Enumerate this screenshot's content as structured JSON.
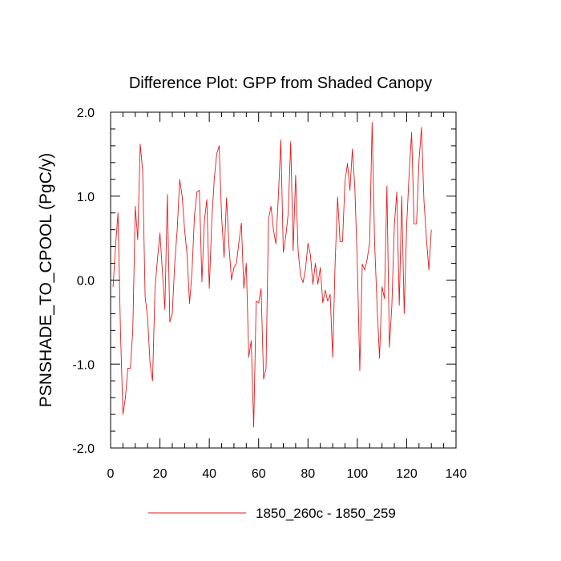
{
  "chart_data": {
    "type": "line",
    "title": "Difference Plot: GPP from Shaded Canopy",
    "xlabel": "",
    "ylabel": "PSNSHADE_TO_CPOOL  (PgC/y)",
    "xlim": [
      0,
      140
    ],
    "ylim": [
      -2.0,
      2.0
    ],
    "x_ticks": [
      0,
      20,
      40,
      60,
      80,
      100,
      120,
      140
    ],
    "x_tick_labels": [
      "0",
      "20",
      "40",
      "60",
      "80",
      "100",
      "120",
      "140"
    ],
    "y_ticks": [
      -2.0,
      -1.0,
      0.0,
      1.0,
      2.0
    ],
    "y_tick_labels": [
      "-2.0",
      "-1.0",
      "0.0",
      "1.0",
      "2.0"
    ],
    "grid": false,
    "legend_position": "bottom-center",
    "series": [
      {
        "name": "1850_260c - 1850_259",
        "color": "#e41a1c",
        "x": [
          1,
          2,
          3,
          4,
          5,
          6,
          7,
          8,
          9,
          10,
          11,
          12,
          13,
          14,
          15,
          16,
          17,
          18,
          19,
          20,
          21,
          22,
          23,
          24,
          25,
          26,
          27,
          28,
          29,
          30,
          31,
          32,
          33,
          34,
          35,
          36,
          37,
          38,
          39,
          40,
          41,
          42,
          43,
          44,
          45,
          46,
          47,
          48,
          49,
          50,
          51,
          52,
          53,
          54,
          55,
          56,
          57,
          58,
          59,
          60,
          61,
          62,
          63,
          64,
          65,
          66,
          67,
          68,
          69,
          70,
          71,
          72,
          73,
          74,
          75,
          76,
          77,
          78,
          79,
          80,
          81,
          82,
          83,
          84,
          85,
          86,
          87,
          88,
          89,
          90,
          91,
          92,
          93,
          94,
          95,
          96,
          97,
          98,
          99,
          100,
          101,
          102,
          103,
          104,
          105,
          106,
          107,
          108,
          109,
          110,
          111,
          112,
          113,
          114,
          115,
          116,
          117,
          118,
          119,
          120,
          121,
          122,
          123,
          124,
          125,
          126,
          127,
          128,
          129,
          130
        ],
        "values": [
          -0.08,
          0.4,
          0.8,
          -0.6,
          -1.6,
          -1.4,
          -1.05,
          -1.05,
          -0.6,
          0.88,
          0.48,
          1.62,
          1.3,
          -0.2,
          -0.45,
          -1.0,
          -1.2,
          -0.1,
          0.25,
          0.56,
          0.1,
          -0.35,
          1.02,
          -0.5,
          -0.4,
          0.2,
          0.6,
          1.2,
          1.0,
          0.6,
          0.3,
          -0.28,
          0.1,
          0.77,
          1.05,
          1.07,
          -0.02,
          0.7,
          0.96,
          -0.1,
          0.7,
          1.2,
          1.5,
          1.6,
          0.75,
          0.27,
          0.98,
          0.4,
          0.0,
          0.15,
          0.2,
          0.45,
          0.68,
          -0.1,
          0.2,
          -0.92,
          -0.72,
          -1.75,
          -0.25,
          -0.27,
          -0.1,
          -1.18,
          -1.05,
          0.72,
          0.88,
          0.6,
          0.43,
          1.0,
          1.67,
          0.33,
          0.52,
          0.8,
          1.65,
          0.35,
          1.25,
          0.35,
          0.05,
          -0.03,
          0.13,
          0.44,
          0.3,
          -0.05,
          0.2,
          -0.05,
          0.15,
          -0.27,
          -0.12,
          -0.25,
          -0.17,
          -0.92,
          0.2,
          0.99,
          0.46,
          0.46,
          1.17,
          1.39,
          1.07,
          1.56,
          1.1,
          0.2,
          -1.08,
          0.19,
          0.12,
          0.25,
          0.45,
          1.88,
          0.45,
          -0.3,
          -0.93,
          -0.08,
          -0.22,
          1.12,
          -0.8,
          -0.3,
          0.65,
          1.05,
          -0.3,
          1.0,
          -0.4,
          0.65,
          1.27,
          1.76,
          0.67,
          0.67,
          1.42,
          1.82,
          0.95,
          0.5,
          0.12,
          0.6
        ]
      }
    ]
  }
}
